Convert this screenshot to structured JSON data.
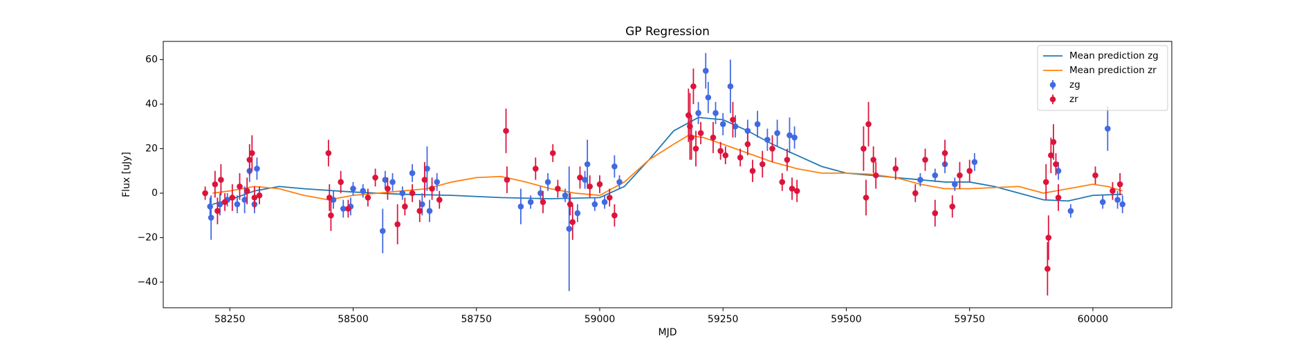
{
  "chart_data": {
    "type": "scatter",
    "title": "GP Regression",
    "xlabel": "MJD",
    "ylabel": "Flux [uJy]",
    "xlim": [
      58115,
      60160
    ],
    "ylim": [
      -51.5,
      68.2
    ],
    "xticks": [
      58250,
      58500,
      58750,
      59000,
      59250,
      59500,
      59750,
      60000
    ],
    "yticks": [
      {
        "value": -40,
        "label": "−40"
      },
      {
        "value": -20,
        "label": "−20"
      },
      0,
      20,
      40,
      60
    ],
    "legend": "upper right",
    "series": [
      {
        "name": "Mean prediction zg",
        "type": "line",
        "color": "#1f77b4",
        "x": [
          58215,
          58250,
          58300,
          58350,
          58400,
          58500,
          58600,
          58700,
          58800,
          58900,
          59000,
          59050,
          59100,
          59150,
          59200,
          59250,
          59300,
          59350,
          59400,
          59450,
          59500,
          59550,
          59600,
          59650,
          59700,
          59750,
          59800,
          59850,
          59900,
          59950,
          60000,
          60060
        ],
        "values": [
          -5,
          -3,
          1,
          3,
          2,
          0.5,
          -0.5,
          -1,
          -2,
          -2.5,
          -2,
          3,
          15,
          28,
          34,
          33,
          28,
          22,
          17,
          12,
          9,
          8,
          7,
          6,
          5,
          5,
          3,
          0,
          -3,
          -3.5,
          -1,
          -0.5
        ]
      },
      {
        "name": "Mean prediction zr",
        "type": "line",
        "color": "#ff7f0e",
        "x": [
          58215,
          58250,
          58300,
          58350,
          58400,
          58450,
          58500,
          58550,
          58600,
          58650,
          58700,
          58750,
          58800,
          58850,
          58900,
          58950,
          59000,
          59050,
          59100,
          59150,
          59180,
          59210,
          59250,
          59300,
          59350,
          59400,
          59450,
          59500,
          59550,
          59600,
          59650,
          59700,
          59750,
          59800,
          59850,
          59900,
          59950,
          60000,
          60030,
          60060
        ],
        "values": [
          0,
          1,
          3,
          2,
          -1,
          -3,
          -1,
          0,
          1,
          2,
          5,
          7,
          7.5,
          5,
          2,
          0,
          -1,
          5,
          15,
          22,
          26,
          25,
          22,
          18,
          14,
          11,
          9,
          9,
          8.5,
          7,
          4,
          2,
          2,
          2.5,
          3,
          0,
          2,
          4,
          3,
          1
        ]
      },
      {
        "name": "zg",
        "type": "errorbar",
        "color": "#4169e1",
        "x": [
          58210,
          58212,
          58230,
          58245,
          58265,
          58280,
          58290,
          58300,
          58305,
          58460,
          58480,
          58495,
          58500,
          58520,
          58560,
          58565,
          58580,
          58600,
          58620,
          58640,
          58650,
          58655,
          58670,
          58840,
          58860,
          58880,
          58895,
          58930,
          58938,
          58955,
          58970,
          58975,
          58990,
          59010,
          59030,
          59040,
          59200,
          59215,
          59220,
          59235,
          59250,
          59265,
          59275,
          59300,
          59320,
          59340,
          59360,
          59385,
          59395,
          59650,
          59680,
          59700,
          59720,
          59760,
          59930,
          59955,
          60020,
          60030,
          60050,
          60060
        ],
        "values": [
          -6,
          -11,
          -5,
          -3,
          -5,
          -3,
          10,
          -5,
          11,
          -3,
          -7,
          -6,
          2,
          1,
          -17,
          6,
          5,
          0,
          9,
          -5,
          11,
          -8,
          5,
          -6,
          -4,
          0,
          5,
          -1,
          -16,
          -9,
          6,
          13,
          -5,
          -4,
          12,
          5,
          36,
          55,
          43,
          36,
          31,
          48,
          30,
          28,
          31,
          24,
          27,
          26,
          25,
          6,
          8,
          13,
          4,
          14,
          10,
          -8,
          -4,
          29,
          -3,
          -5
        ],
        "errors": [
          4,
          10,
          5,
          3,
          4,
          6,
          5,
          4,
          5,
          4,
          4,
          4,
          3,
          3,
          10,
          4,
          4,
          3,
          4,
          5,
          10,
          5,
          4,
          8,
          3,
          3,
          4,
          3,
          28,
          4,
          4,
          11,
          3,
          3,
          5,
          3,
          5,
          8,
          7,
          5,
          5,
          12,
          5,
          5,
          6,
          5,
          6,
          8,
          5,
          3,
          3,
          4,
          3,
          4,
          4,
          3,
          3,
          10,
          4,
          4
        ]
      },
      {
        "name": "zr",
        "type": "errorbar",
        "color": "#dc143c",
        "x": [
          58200,
          58220,
          58225,
          58232,
          58240,
          58255,
          58270,
          58285,
          58290,
          58295,
          58300,
          58310,
          58450,
          58452,
          58455,
          58475,
          58490,
          58530,
          58545,
          58570,
          58590,
          58605,
          58620,
          58635,
          58645,
          58660,
          58675,
          58810,
          58812,
          58870,
          58885,
          58905,
          58915,
          58940,
          58945,
          58960,
          58980,
          59000,
          59020,
          59030,
          59180,
          59183,
          59186,
          59190,
          59195,
          59205,
          59230,
          59245,
          59255,
          59270,
          59285,
          59300,
          59310,
          59330,
          59350,
          59370,
          59380,
          59390,
          59400,
          59535,
          59540,
          59545,
          59555,
          59560,
          59600,
          59640,
          59660,
          59680,
          59700,
          59715,
          59730,
          59750,
          59905,
          59908,
          59910,
          59915,
          59920,
          59925,
          59930,
          60005,
          60040,
          60055
        ],
        "values": [
          0,
          4,
          -8,
          6,
          -4,
          -2,
          3,
          1,
          15,
          18,
          -2,
          -1,
          18,
          -2,
          -10,
          5,
          -7,
          -2,
          7,
          2,
          -14,
          -6,
          0,
          -8,
          6,
          2,
          -3,
          28,
          6,
          11,
          -4,
          18,
          2,
          -5,
          -13,
          7,
          3,
          4,
          -2,
          -10,
          35,
          30,
          25,
          48,
          20,
          27,
          25,
          19,
          17,
          33,
          16,
          22,
          10,
          13,
          20,
          5,
          15,
          2,
          1,
          20,
          -2,
          31,
          15,
          8,
          11,
          0,
          15,
          -9,
          18,
          -6,
          8,
          10,
          5,
          -34,
          -20,
          17,
          23,
          13,
          -2,
          8,
          1,
          4
        ],
        "errors": [
          3,
          6,
          6,
          7,
          4,
          6,
          6,
          6,
          7,
          8,
          5,
          4,
          6,
          6,
          7,
          5,
          4,
          4,
          4,
          5,
          9,
          4,
          4,
          5,
          8,
          5,
          4,
          10,
          6,
          5,
          5,
          4,
          4,
          5,
          8,
          5,
          5,
          4,
          4,
          5,
          12,
          15,
          10,
          8,
          8,
          5,
          7,
          4,
          4,
          8,
          4,
          5,
          5,
          6,
          6,
          4,
          5,
          5,
          5,
          10,
          8,
          10,
          6,
          6,
          5,
          4,
          5,
          6,
          6,
          5,
          6,
          5,
          8,
          12,
          10,
          8,
          8,
          5,
          6,
          4,
          4,
          5
        ]
      }
    ]
  }
}
